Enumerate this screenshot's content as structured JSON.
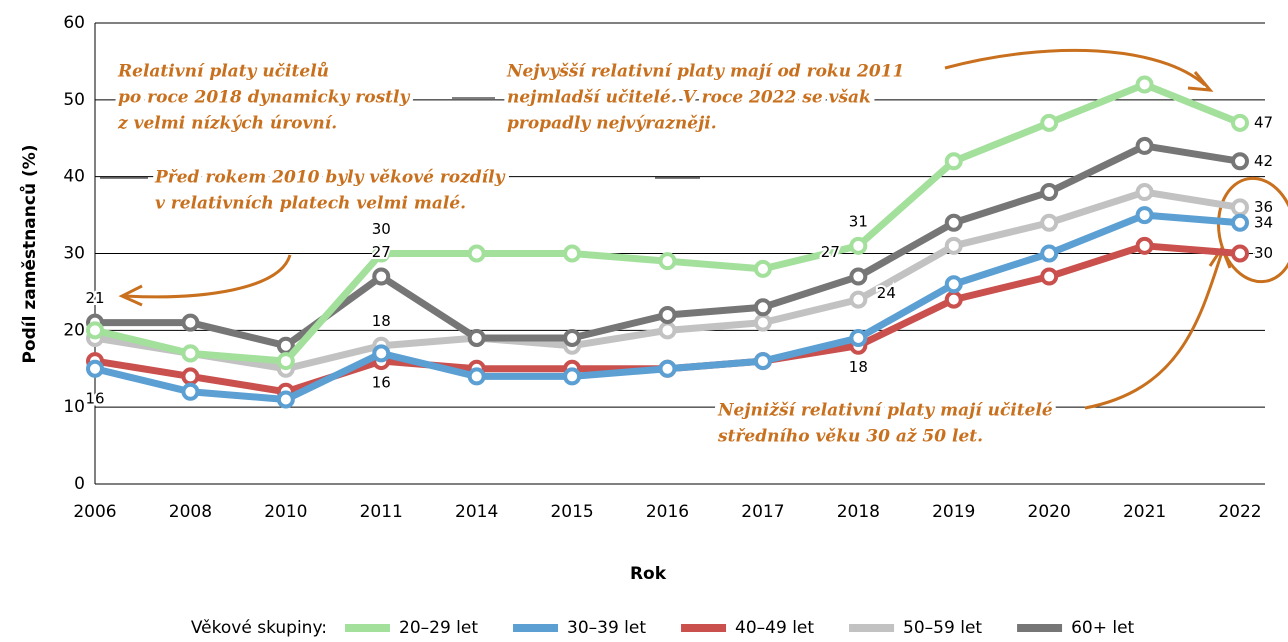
{
  "chart_data": {
    "type": "line",
    "categories": [
      "2006",
      "2008",
      "2010",
      "2011",
      "2014",
      "2015",
      "2016",
      "2017",
      "2018",
      "2019",
      "2020",
      "2021",
      "2022"
    ],
    "x_label": "Rok",
    "y_label": "Podíl zaměstnanců (%)",
    "ylim": [
      0,
      60
    ],
    "yticks": [
      0,
      10,
      20,
      30,
      40,
      50,
      60
    ],
    "grid": true,
    "legend_title": "Věkové skupiny:",
    "series": [
      {
        "name": "20–29 let",
        "color": "#a3e09c",
        "values": [
          20,
          17,
          16,
          30,
          30,
          30,
          29,
          28,
          31,
          42,
          47,
          52,
          47
        ],
        "value_labels": [
          null,
          null,
          null,
          "30",
          null,
          null,
          null,
          null,
          "31",
          null,
          null,
          null,
          "47"
        ]
      },
      {
        "name": "30–39 let",
        "color": "#5b9fd3",
        "values": [
          15,
          12,
          11,
          17,
          14,
          14,
          15,
          16,
          19,
          26,
          30,
          35,
          34
        ],
        "value_labels": [
          null,
          null,
          null,
          null,
          null,
          null,
          null,
          null,
          null,
          null,
          null,
          null,
          "34"
        ]
      },
      {
        "name": "40–49 let",
        "color": "#c9504d",
        "values": [
          16,
          14,
          12,
          16,
          15,
          15,
          15,
          16,
          18,
          24,
          27,
          31,
          30
        ],
        "value_labels": [
          "16",
          null,
          null,
          "16",
          null,
          null,
          null,
          null,
          "18",
          null,
          null,
          null,
          "30"
        ]
      },
      {
        "name": "50–59 let",
        "color": "#c2c2c2",
        "values": [
          19,
          17,
          15,
          18,
          19,
          18,
          20,
          21,
          24,
          31,
          34,
          38,
          36
        ],
        "value_labels": [
          null,
          null,
          null,
          "18",
          null,
          null,
          null,
          null,
          "24",
          null,
          null,
          null,
          "36"
        ]
      },
      {
        "name": "60+ let",
        "color": "#767676",
        "values": [
          21,
          21,
          18,
          27,
          19,
          19,
          22,
          23,
          27,
          34,
          38,
          44,
          42
        ],
        "value_labels": [
          "21",
          null,
          null,
          "27",
          null,
          null,
          null,
          null,
          "27",
          null,
          null,
          null,
          "42"
        ]
      }
    ],
    "annotations": [
      [
        "Relativní platy učitelů",
        "po roce 2018 dynamicky rostly",
        "z velmi nízkých úrovní."
      ],
      [
        "Nejvyšší relativní platy mají od roku 2011",
        "nejmladší učitelé. V roce 2022 se však",
        "propadly nejvýrazněji."
      ],
      [
        "Před rokem 2010 byly věkové rozdíly",
        "v relativních platech velmi malé."
      ],
      [
        "Nejnižší relativní platy mají učitelé",
        "středního věku 30 až 50 let."
      ]
    ]
  }
}
